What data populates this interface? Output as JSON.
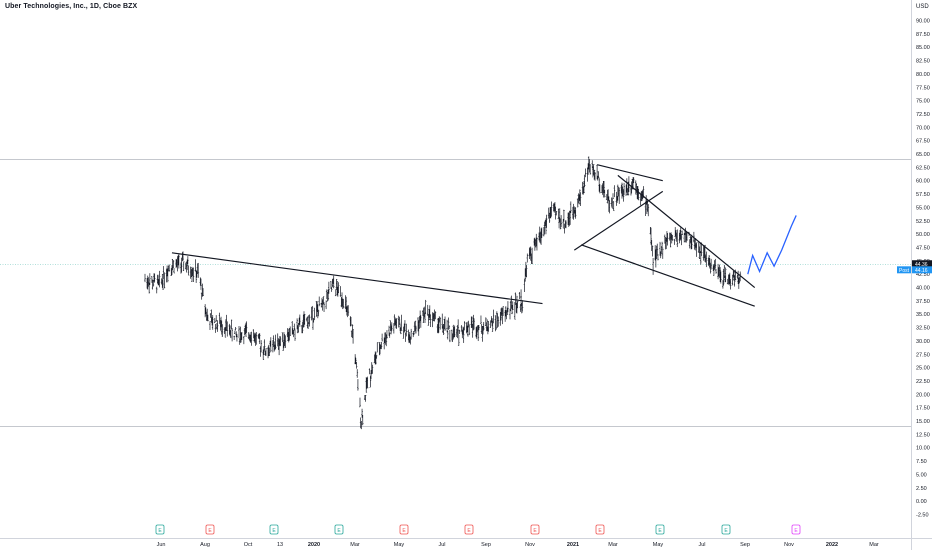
{
  "header": {
    "title": "Uber Technologies, Inc., 1D, Cboe BZX",
    "currency": "USD"
  },
  "price_scale": {
    "labels": [
      "90.00",
      "87.50",
      "85.00",
      "82.50",
      "80.00",
      "77.50",
      "75.00",
      "72.50",
      "70.00",
      "67.50",
      "65.00",
      "62.50",
      "60.00",
      "57.50",
      "55.00",
      "52.50",
      "50.00",
      "47.50",
      "45.00",
      "42.50",
      "40.00",
      "37.50",
      "35.00",
      "32.50",
      "30.00",
      "27.50",
      "25.00",
      "22.50",
      "20.00",
      "17.50",
      "15.00",
      "12.50",
      "10.00",
      "7.50",
      "5.00",
      "2.50",
      "0.00",
      "-2.50"
    ],
    "current_price_label": "44.36",
    "post_label": "Post",
    "post_price_label": "44.16"
  },
  "time_scale": {
    "labels": [
      {
        "text": "Jun",
        "bold": false
      },
      {
        "text": "Aug",
        "bold": false
      },
      {
        "text": "Oct",
        "bold": false
      },
      {
        "text": "13",
        "bold": false
      },
      {
        "text": "2020",
        "bold": true
      },
      {
        "text": "Mar",
        "bold": false
      },
      {
        "text": "May",
        "bold": false
      },
      {
        "text": "Jul",
        "bold": false
      },
      {
        "text": "Sep",
        "bold": false
      },
      {
        "text": "Nov",
        "bold": false
      },
      {
        "text": "2021",
        "bold": true
      },
      {
        "text": "Mar",
        "bold": false
      },
      {
        "text": "May",
        "bold": false
      },
      {
        "text": "Jul",
        "bold": false
      },
      {
        "text": "Sep",
        "bold": false
      },
      {
        "text": "Nov",
        "bold": false
      },
      {
        "text": "2022",
        "bold": true
      },
      {
        "text": "Mar",
        "bold": false
      }
    ]
  },
  "events": [
    {
      "letter": "E",
      "kind": "earnings",
      "color": "#26a69a"
    },
    {
      "letter": "E",
      "kind": "earnings",
      "color": "#ef5350"
    },
    {
      "letter": "E",
      "kind": "earnings",
      "color": "#26a69a"
    },
    {
      "letter": "E",
      "kind": "earnings",
      "color": "#26a69a"
    },
    {
      "letter": "E",
      "kind": "earnings",
      "color": "#ef5350"
    },
    {
      "letter": "E",
      "kind": "earnings",
      "color": "#ef5350"
    },
    {
      "letter": "E",
      "kind": "earnings",
      "color": "#ef5350"
    },
    {
      "letter": "E",
      "kind": "earnings",
      "color": "#ef5350"
    },
    {
      "letter": "E",
      "kind": "earnings",
      "color": "#26a69a"
    },
    {
      "letter": "E",
      "kind": "earnings",
      "color": "#26a69a"
    },
    {
      "letter": "E",
      "kind": "upcoming-earnings",
      "color": "#e040fb"
    }
  ],
  "chart_data": {
    "type": "line",
    "title": "Uber Technologies, Inc., 1D, Cboe BZX",
    "xlabel": "",
    "ylabel": "",
    "ylim": [
      -2.5,
      90
    ],
    "x_range": [
      "2019-05-10",
      "2022-03-31"
    ],
    "series": [
      {
        "role": "price",
        "x": [
          "2019-05-10",
          "2019-05-31",
          "2019-06-14",
          "2019-07-05",
          "2019-07-26",
          "2019-08-09",
          "2019-08-30",
          "2019-09-20",
          "2019-10-11",
          "2019-11-01",
          "2019-11-22",
          "2019-12-13",
          "2020-01-03",
          "2020-01-24",
          "2020-02-07",
          "2020-02-21",
          "2020-03-06",
          "2020-03-18",
          "2020-03-27",
          "2020-04-17",
          "2020-05-08",
          "2020-05-29",
          "2020-06-19",
          "2020-07-10",
          "2020-07-31",
          "2020-08-21",
          "2020-09-11",
          "2020-10-02",
          "2020-10-23",
          "2020-11-06",
          "2020-11-13",
          "2020-12-04",
          "2020-12-18",
          "2021-01-08",
          "2021-01-29",
          "2021-02-10",
          "2021-02-26",
          "2021-03-12",
          "2021-03-31",
          "2021-04-16",
          "2021-05-07",
          "2021-05-14",
          "2021-06-04",
          "2021-06-25",
          "2021-07-16",
          "2021-08-06",
          "2021-08-20",
          "2021-09-03",
          "2021-09-17"
        ],
        "values": [
          41.5,
          40.5,
          44,
          44.5,
          42.5,
          34,
          33,
          31,
          31.5,
          28,
          30,
          32,
          34,
          37,
          40.5,
          38,
          31,
          15,
          22.5,
          30,
          33.5,
          31,
          35.5,
          33,
          31,
          33,
          32.5,
          34,
          36.5,
          37.5,
          45,
          50,
          54.5,
          52,
          57,
          63,
          60,
          56,
          58,
          60,
          55,
          45,
          49,
          50,
          48,
          44,
          42,
          41.5,
          42
        ]
      },
      {
        "role": "projection",
        "x": [
          "2021-09-28",
          "2021-10-05",
          "2021-10-15",
          "2021-10-26",
          "2021-11-05",
          "2021-11-16",
          "2021-11-30",
          "2021-12-07"
        ],
        "values": [
          42.5,
          46,
          43,
          46.5,
          44,
          47,
          51.5,
          53.5
        ]
      }
    ],
    "trendlines": [
      {
        "from": {
          "x": "2019-06-18",
          "y": 46.5
        },
        "to": {
          "x": "2020-12-05",
          "y": 37.0
        }
      },
      {
        "from": {
          "x": "2021-02-22",
          "y": 63.0
        },
        "to": {
          "x": "2021-05-28",
          "y": 60.0
        }
      },
      {
        "from": {
          "x": "2021-01-20",
          "y": 47.0
        },
        "to": {
          "x": "2021-05-28",
          "y": 58.0
        }
      },
      {
        "from": {
          "x": "2021-03-24",
          "y": 61.0
        },
        "to": {
          "x": "2021-10-08",
          "y": 40.0
        }
      },
      {
        "from": {
          "x": "2021-01-30",
          "y": 48.0
        },
        "to": {
          "x": "2021-10-08",
          "y": 36.5
        }
      }
    ],
    "horizontal_lines": [
      64,
      14
    ],
    "current_price": 44.36,
    "post_price": 44.16
  }
}
